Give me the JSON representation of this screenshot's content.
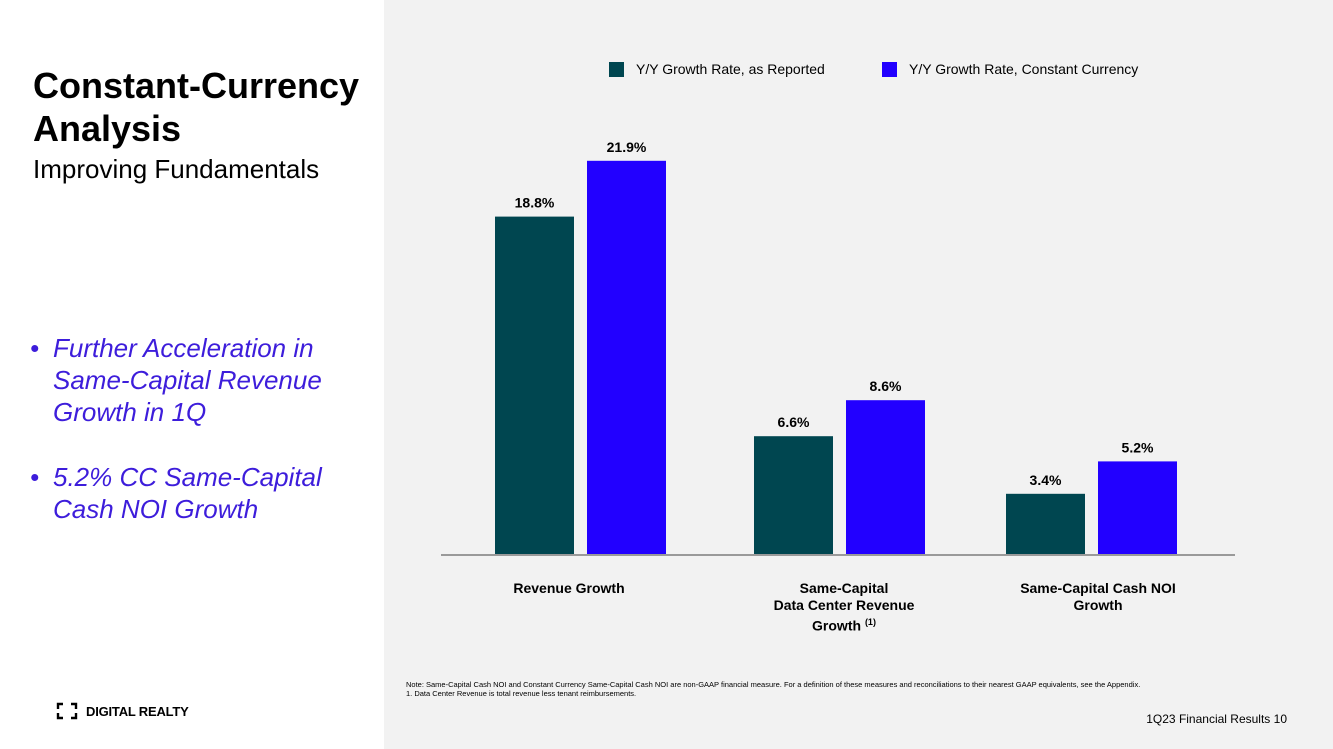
{
  "slide": {
    "title": "Constant-Currency Analysis",
    "subtitle": "Improving Fundamentals",
    "bullets": [
      "Further Acceleration in Same-Capital Revenue Growth in 1Q",
      "5.2% CC Same-Capital Cash NOI Growth"
    ],
    "bullet_symbol": "•",
    "brand": "DIGITAL REALTY",
    "footnote_note": "Note:  Same-Capital Cash NOI and Constant Currency Same-Capital Cash NOI are non-GAAP financial measure.  For a definition of these measures and reconciliations to their nearest GAAP equivalents, see the Appendix.",
    "footnote_1": "1.      Data Center Revenue is total revenue less tenant reimbursements.",
    "page_ref": "1Q23 Financial Results 10"
  },
  "colors": {
    "reported": "#004650",
    "constant": "#2200ff",
    "accent_text": "#3d1ddb",
    "axis": "#9a9a9a"
  },
  "chart_data": {
    "type": "bar",
    "title": "",
    "categories": [
      "Revenue Growth",
      "Same-Capital Data Center Revenue Growth (1)",
      "Same-Capital Cash NOI Growth"
    ],
    "category_labels": [
      {
        "line1": "Revenue Growth",
        "line2": "",
        "line3": "",
        "sup": ""
      },
      {
        "line1": "Same-Capital",
        "line2": "Data Center Revenue",
        "line3": "Growth",
        "sup": "(1)"
      },
      {
        "line1": "Same-Capital Cash NOI",
        "line2": "Growth",
        "line3": "",
        "sup": ""
      }
    ],
    "series": [
      {
        "name": "Y/Y Growth Rate, as Reported",
        "values": [
          18.8,
          6.6,
          3.4
        ],
        "labels": [
          "18.8%",
          "6.6%",
          "3.4%"
        ]
      },
      {
        "name": "Y/Y Growth Rate, Constant Currency",
        "values": [
          21.9,
          8.6,
          5.2
        ],
        "labels": [
          "21.9%",
          "8.6%",
          "5.2%"
        ]
      }
    ],
    "ylim": [
      0,
      25
    ],
    "unit": "%",
    "grid": false,
    "legend": "top-center"
  }
}
